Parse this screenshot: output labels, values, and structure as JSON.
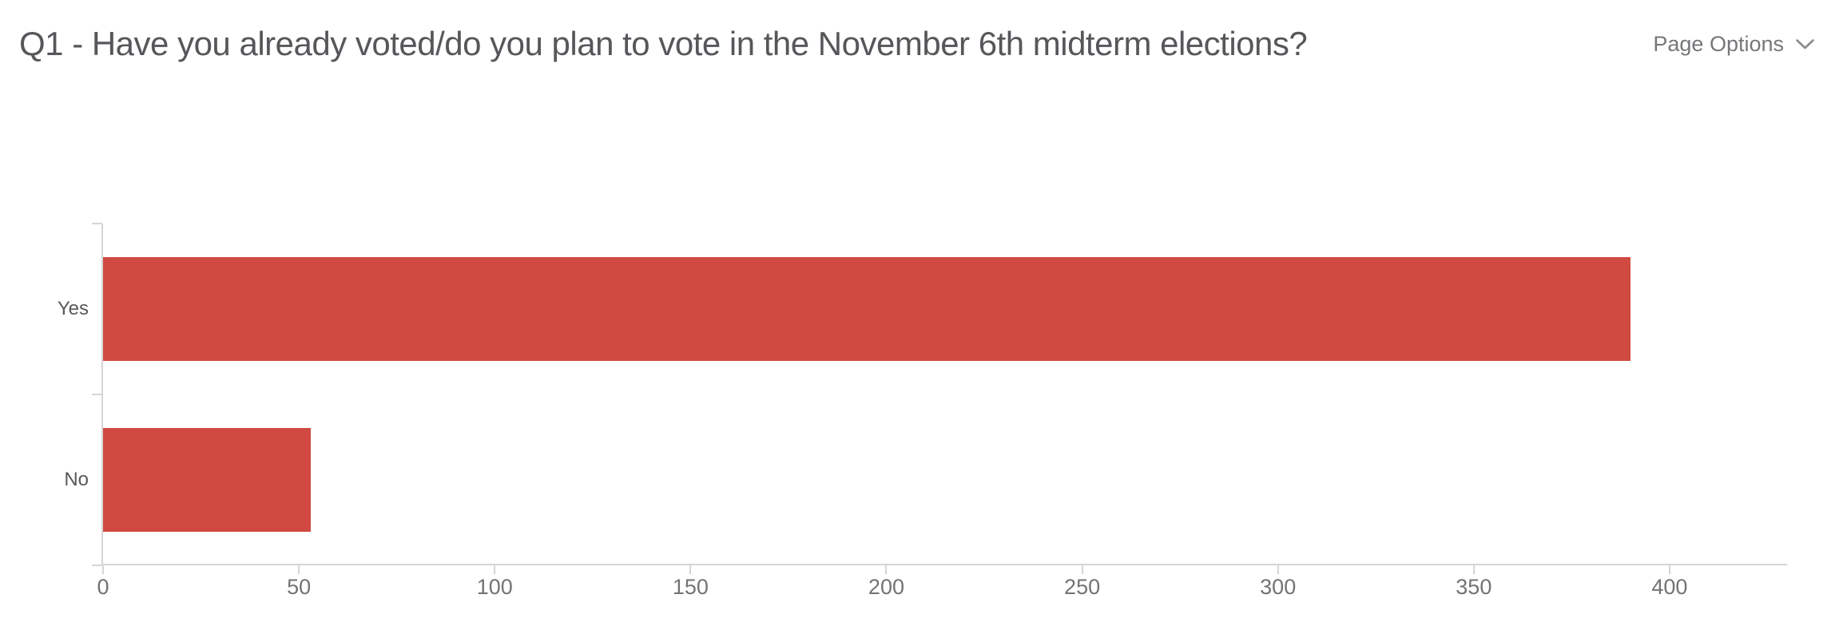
{
  "header": {
    "title": "Q1 - Have you already voted/do you plan to vote in the November 6th midterm elections?",
    "page_options": {
      "label": "Page Options",
      "icon": "chevron-down-icon"
    }
  },
  "chart_data": {
    "type": "bar",
    "orientation": "horizontal",
    "title": "Q1 - Have you already voted/do you plan to vote in the November 6th midterm elections?",
    "categories": [
      "Yes",
      "No"
    ],
    "values": [
      390,
      53
    ],
    "x_ticks": [
      "0",
      "50",
      "100",
      "150",
      "200",
      "250",
      "300",
      "350",
      "400"
    ],
    "x_tick_values": [
      0,
      50,
      100,
      150,
      200,
      250,
      300,
      350,
      400
    ],
    "xlim": [
      0,
      430
    ],
    "xlabel": "",
    "ylabel": "",
    "grid": "off",
    "legend": "none"
  },
  "colors": {
    "background": "#ffffff",
    "bar": "#d04a42",
    "axis_line": "#d5d5d5",
    "tick_label": "#737373",
    "category_label": "#595959",
    "title_text": "#56575a",
    "page_options_text": "#76777a",
    "chevron": "#8a8a8a"
  }
}
